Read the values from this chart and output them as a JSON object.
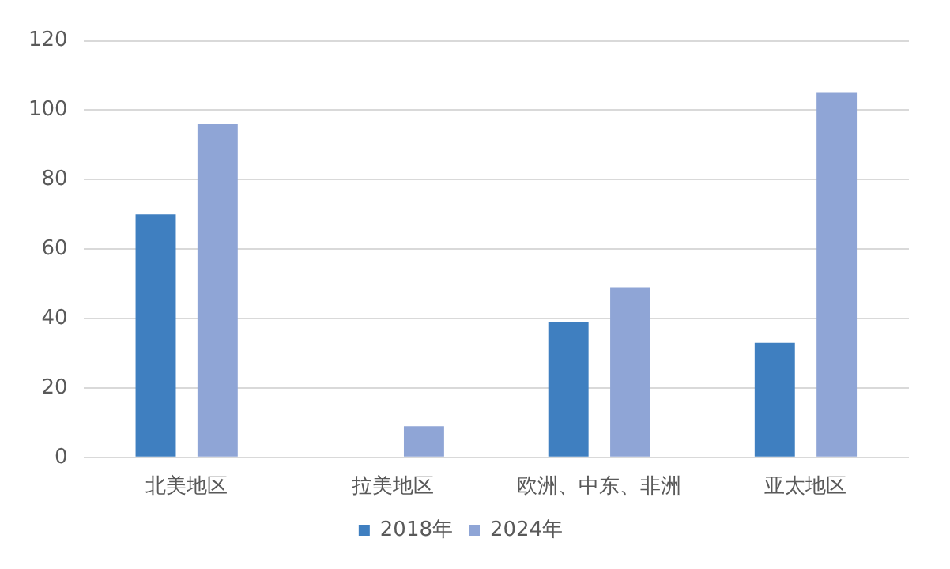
{
  "chart_data": {
    "type": "bar",
    "categories": [
      "北美地区",
      "拉美地区",
      "欧洲、中东、非洲",
      "亚太地区"
    ],
    "series": [
      {
        "name": "2018年",
        "color": "#3f7fc0",
        "values": [
          70,
          null,
          39,
          33
        ]
      },
      {
        "name": "2024年",
        "color": "#8fa5d6",
        "values": [
          96,
          9,
          49,
          105
        ]
      }
    ],
    "ylim": [
      0,
      120
    ],
    "yticks": [
      0,
      20,
      40,
      60,
      80,
      100,
      120
    ],
    "grid": "y",
    "legend": "bottom"
  }
}
